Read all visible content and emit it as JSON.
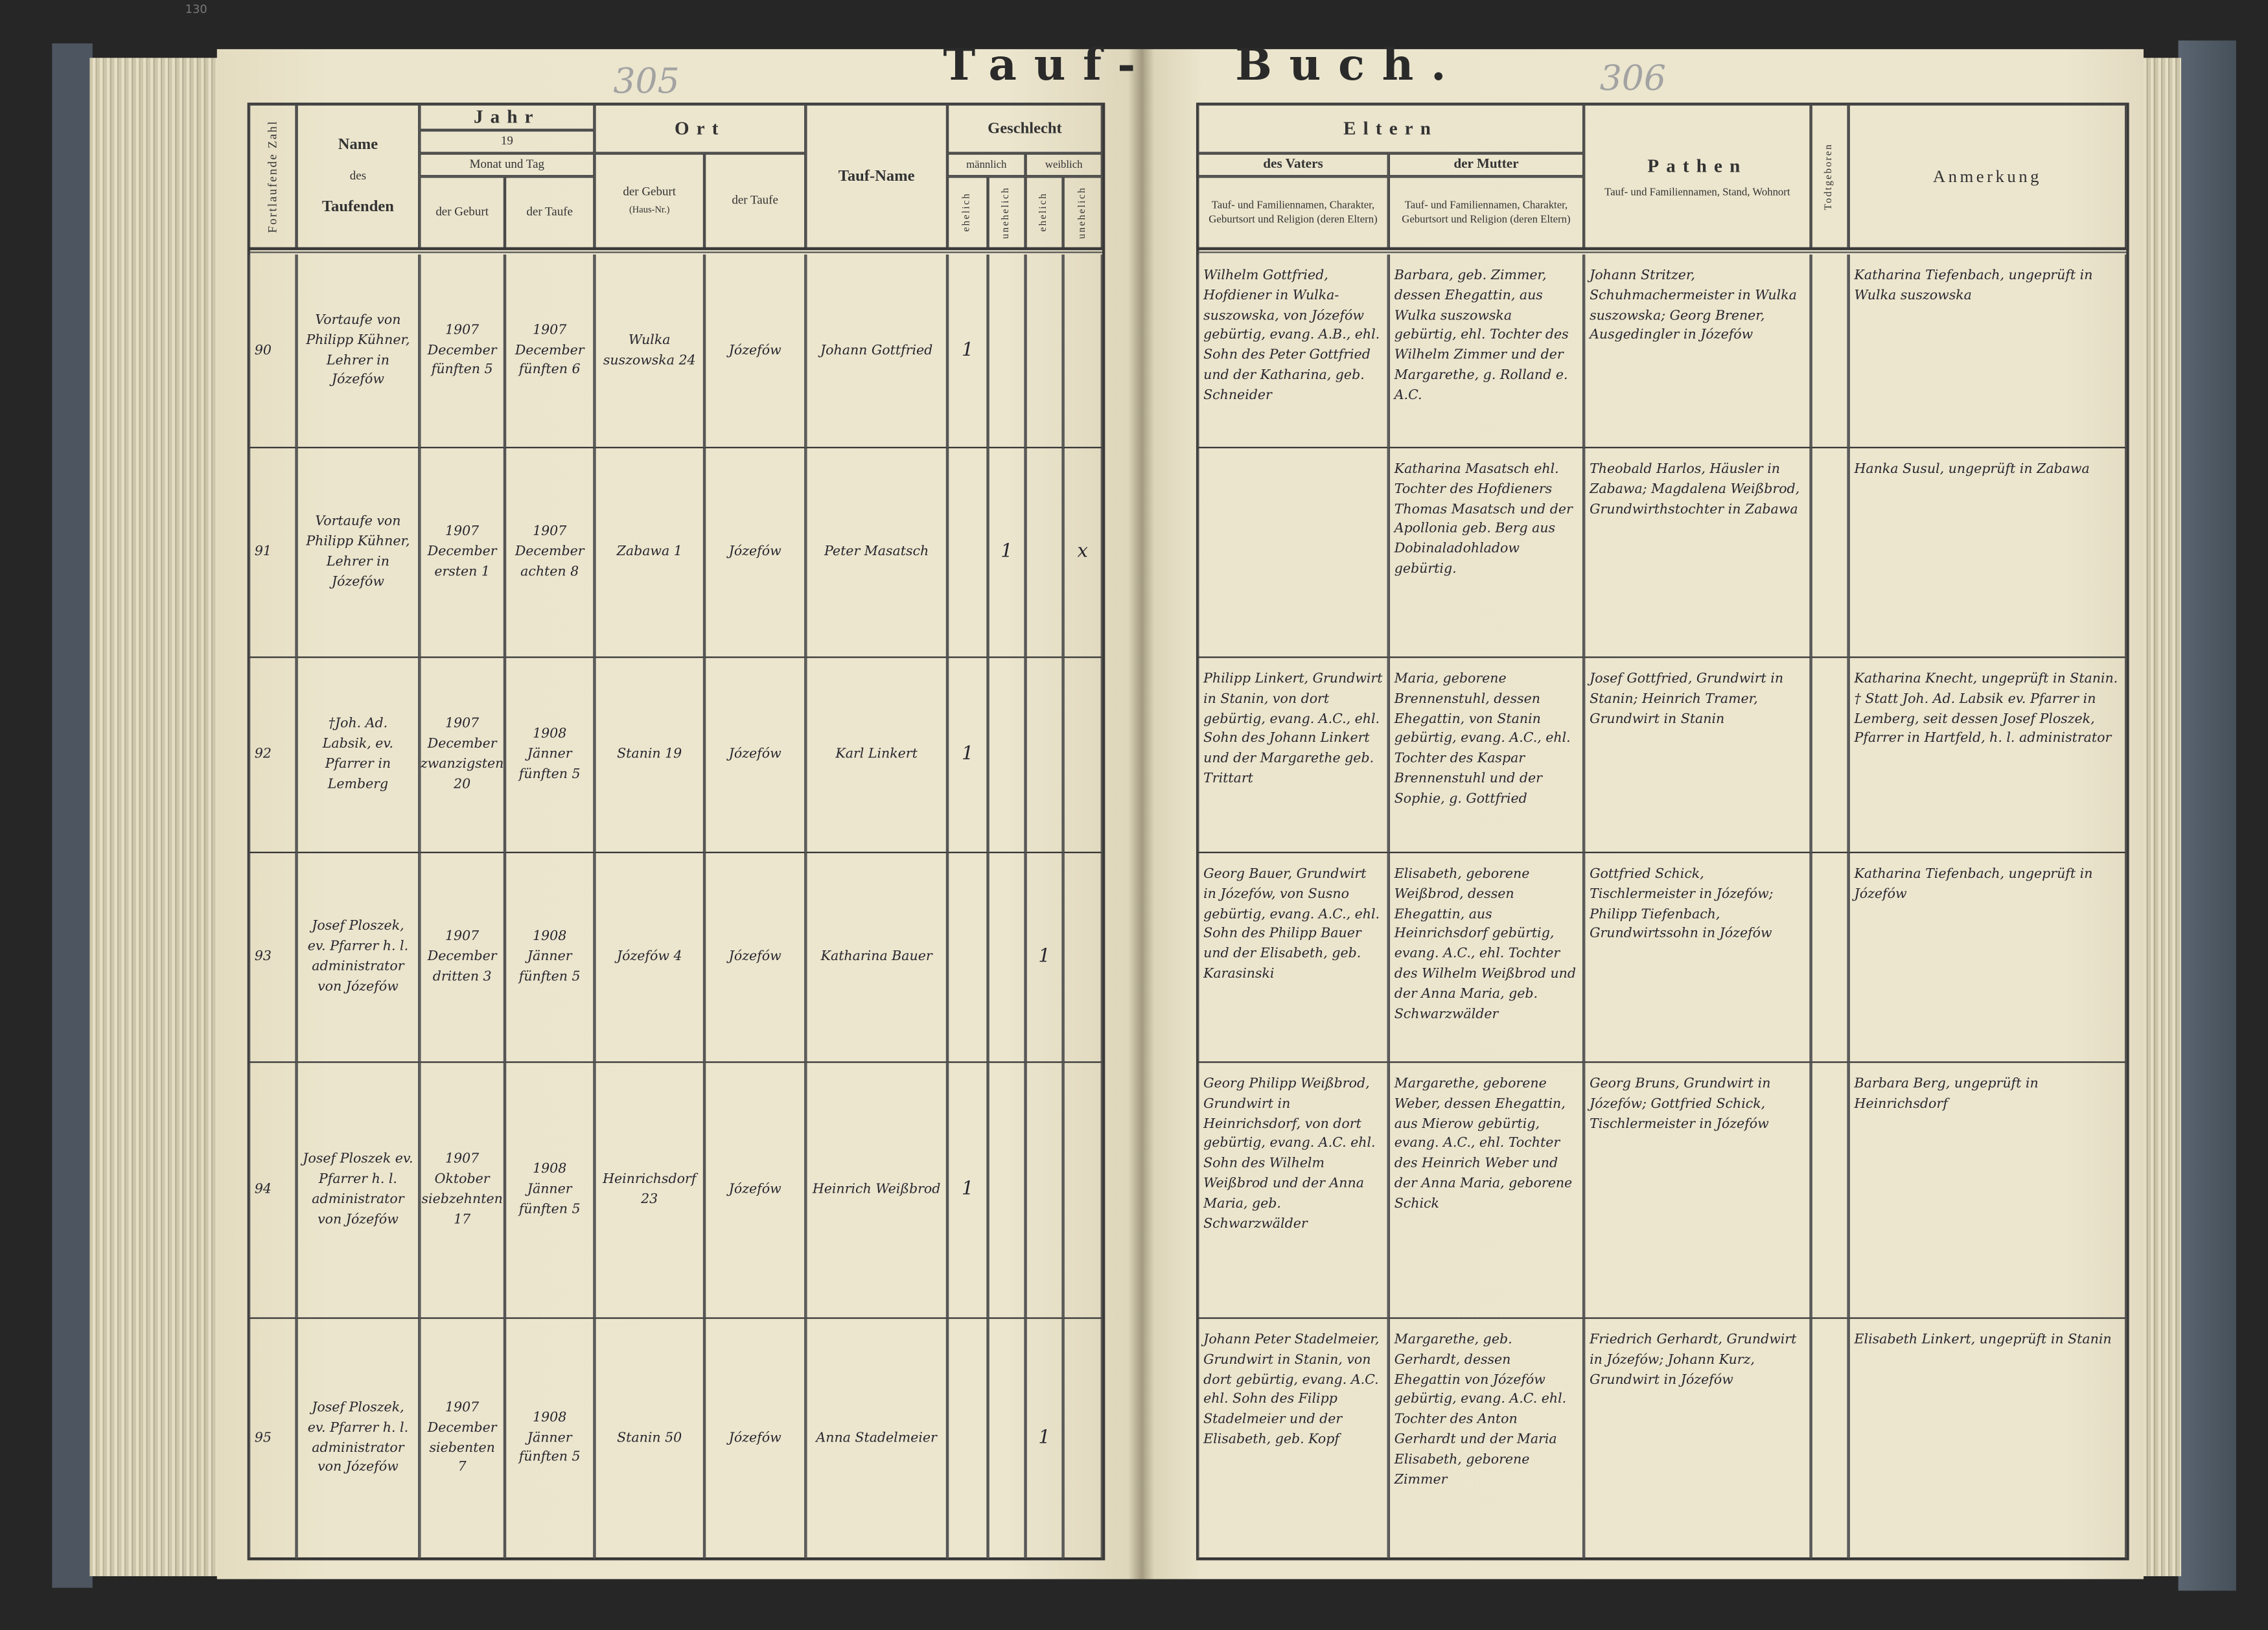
{
  "book": {
    "title_left": "Tauf-",
    "title_right": "Buch.",
    "page_number_left": "305",
    "page_number_right": "306",
    "folio_corner": "130"
  },
  "left_header": {
    "serial": "Fortlaufende Zahl",
    "name_title": "Name",
    "name_des": "des",
    "name_sub": "Taufenden",
    "year": "Jahr",
    "century": "19",
    "month_day": "Monat und Tag",
    "date_birth": "der Geburt",
    "date_baptism": "der Taufe",
    "place": "Ort",
    "place_birth": "der Geburt",
    "place_birth_note": "(Haus-Nr.)",
    "place_baptism": "der Taufe",
    "baptismal_name": "Tauf-Name",
    "sex": "Geschlecht",
    "male": "männlich",
    "female": "weiblich",
    "legitimate": "ehelich",
    "illegitimate": "unehelich"
  },
  "right_header": {
    "parents": "Eltern",
    "father": "des Vaters",
    "mother": "der Mutter",
    "parents_desc": "Tauf- und Familiennamen, Charakter, Geburtsort und Religion (deren Eltern)",
    "godparents": "Pathen",
    "godparents_desc": "Tauf- und Familiennamen, Stand, Wohnort",
    "stillborn": "Todtgeboren",
    "remarks": "Anmerkung"
  },
  "rows": [
    {
      "number": "90",
      "baptizer": "Vortaufe von Philipp Kühner, Lehrer in Józefów",
      "birth_date": "1907 December fünften 5",
      "baptism_date": "1907 December fünften 6",
      "birth_place": "Wulka suszowska 24",
      "baptism_place": "Józefów",
      "baptismal_name": "Johann Gottfried",
      "male_legitimate": "1",
      "male_illegitimate": "",
      "female_legitimate": "",
      "female_illegitimate": "",
      "father": "Wilhelm Gottfried, Hofdiener in Wulka-suszowska, von Józefów gebürtig, evang. A.B., ehl. Sohn des Peter Gottfried und der Katharina, geb. Schneider",
      "mother": "Barbara, geb. Zimmer, dessen Ehegattin, aus Wulka suszowska gebürtig, ehl. Tochter des Wilhelm Zimmer und der Margarethe, g. Rolland e. A.C.",
      "godparents": "Johann Stritzer, Schuhmachermeister in Wulka suszowska; Georg Brener, Ausgedingler in Józefów",
      "stillborn": "",
      "remarks": "Katharina Tiefenbach, ungeprüft in Wulka suszowska"
    },
    {
      "number": "91",
      "baptizer": "Vortaufe von Philipp Kühner, Lehrer in Józefów",
      "birth_date": "1907 December ersten 1",
      "baptism_date": "1907 December achten 8",
      "birth_place": "Zabawa 1",
      "baptism_place": "Józefów",
      "baptismal_name": "Peter Masatsch",
      "male_legitimate": "",
      "male_illegitimate": "1",
      "female_legitimate": "",
      "female_illegitimate": "x",
      "father": "",
      "mother": "Katharina Masatsch ehl. Tochter des Hofdieners Thomas Masatsch und der Apollonia geb. Berg aus Dobinaladohladow gebürtig.",
      "godparents": "Theobald Harlos, Häusler in Zabawa; Magdalena Weißbrod, Grundwirthstochter in Zabawa",
      "stillborn": "",
      "remarks": "Hanka Susul, ungeprüft in Zabawa"
    },
    {
      "number": "92",
      "baptizer": "†Joh. Ad. Labsik, ev. Pfarrer in Lemberg",
      "birth_date": "1907 December zwanzigsten 20",
      "baptism_date": "1908 Jänner fünften 5",
      "birth_place": "Stanin 19",
      "baptism_place": "Józefów",
      "baptismal_name": "Karl Linkert",
      "male_legitimate": "1",
      "male_illegitimate": "",
      "female_legitimate": "",
      "female_illegitimate": "",
      "father": "Philipp Linkert, Grundwirt in Stanin, von dort gebürtig, evang. A.C., ehl. Sohn des Johann Linkert und der Margarethe geb. Trittart",
      "mother": "Maria, geborene Brennenstuhl, dessen Ehegattin, von Stanin gebürtig, evang. A.C., ehl. Tochter des Kaspar Brennenstuhl und der Sophie, g. Gottfried",
      "godparents": "Josef Gottfried, Grundwirt in Stanin; Heinrich Tramer, Grundwirt in Stanin",
      "stillborn": "",
      "remarks": "Katharina Knecht, ungeprüft in Stanin. † Statt Joh. Ad. Labsik ev. Pfarrer in Lemberg, seit dessen Josef Ploszek, Pfarrer in Hartfeld, h. l. administrator"
    },
    {
      "number": "93",
      "baptizer": "Josef Ploszek, ev. Pfarrer h. l. administrator von Józefów",
      "birth_date": "1907 December dritten 3",
      "baptism_date": "1908 Jänner fünften 5",
      "birth_place": "Józefów 4",
      "baptism_place": "Józefów",
      "baptismal_name": "Katharina Bauer",
      "male_legitimate": "",
      "male_illegitimate": "",
      "female_legitimate": "1",
      "female_illegitimate": "",
      "father": "Georg Bauer, Grundwirt in Józefów, von Susno gebürtig, evang. A.C., ehl. Sohn des Philipp Bauer und der Elisabeth, geb. Karasinski",
      "mother": "Elisabeth, geborene Weißbrod, dessen Ehegattin, aus Heinrichsdorf gebürtig, evang. A.C., ehl. Tochter des Wilhelm Weißbrod und der Anna Maria, geb. Schwarzwälder",
      "godparents": "Gottfried Schick, Tischlermeister in Józefów; Philipp Tiefenbach, Grundwirtssohn in Józefów",
      "stillborn": "",
      "remarks": "Katharina Tiefenbach, ungeprüft in Józefów"
    },
    {
      "number": "94",
      "baptizer": "Josef Ploszek ev. Pfarrer h. l. administrator von Józefów",
      "birth_date": "1907 Oktober siebzehnten 17",
      "baptism_date": "1908 Jänner fünften 5",
      "birth_place": "Heinrichsdorf 23",
      "baptism_place": "Józefów",
      "baptismal_name": "Heinrich Weißbrod",
      "male_legitimate": "1",
      "male_illegitimate": "",
      "female_legitimate": "",
      "female_illegitimate": "",
      "father": "Georg Philipp Weißbrod, Grundwirt in Heinrichsdorf, von dort gebürtig, evang. A.C. ehl. Sohn des Wilhelm Weißbrod und der Anna Maria, geb. Schwarzwälder",
      "mother": "Margarethe, geborene Weber, dessen Ehegattin, aus Mierow gebürtig, evang. A.C., ehl. Tochter des Heinrich Weber und der Anna Maria, geborene Schick",
      "godparents": "Georg Bruns, Grundwirt in Józefów; Gottfried Schick, Tischlermeister in Józefów",
      "stillborn": "",
      "remarks": "Barbara Berg, ungeprüft in Heinrichsdorf"
    },
    {
      "number": "95",
      "baptizer": "Josef Ploszek, ev. Pfarrer h. l. administrator von Józefów",
      "birth_date": "1907 December siebenten 7",
      "baptism_date": "1908 Jänner fünften 5",
      "birth_place": "Stanin 50",
      "baptism_place": "Józefów",
      "baptismal_name": "Anna Stadelmeier",
      "male_legitimate": "",
      "male_illegitimate": "",
      "female_legitimate": "1",
      "female_illegitimate": "",
      "father": "Johann Peter Stadelmeier, Grundwirt in Stanin, von dort gebürtig, evang. A.C. ehl. Sohn des Filipp Stadelmeier und der Elisabeth, geb. Kopf",
      "mother": "Margarethe, geb. Gerhardt, dessen Ehegattin von Józefów gebürtig, evang. A.C. ehl. Tochter des Anton Gerhardt und der Maria Elisabeth, geborene Zimmer",
      "godparents": "Friedrich Gerhardt, Grundwirt in Józefów; Johann Kurz, Grundwirt in Józefów",
      "stillborn": "",
      "remarks": "Elisabeth Linkert, ungeprüft in Stanin"
    }
  ],
  "colors": {
    "paper": "#ece6cf",
    "ink": "#27262e",
    "pencil": "#a3a3a3",
    "cover": "#5b6571"
  }
}
